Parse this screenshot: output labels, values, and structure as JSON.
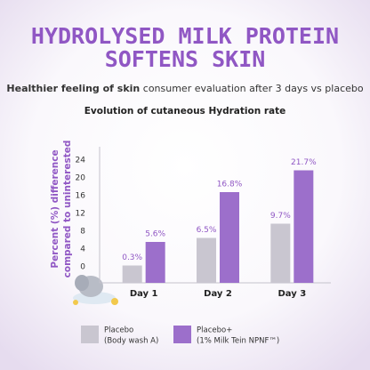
{
  "header": {
    "title_lines": [
      "HYDROLYSED MILK PROTEIN",
      "SOFTENS SKIN"
    ],
    "subtitle_bold": "Healthier feeling of skin",
    "subtitle_rest": "consumer evaluation after 3 days vs placebo"
  },
  "chart_data": {
    "type": "bar",
    "title": "Evolution of cutaneous Hydration rate",
    "y_label_lines": [
      "Percent (%) difference",
      "compared to uninterested"
    ],
    "categories": [
      "Day 1",
      "Day 2",
      "Day 3"
    ],
    "series": [
      {
        "name": "Placebo",
        "note": "(Body wash A)",
        "color": "#c9c6d0",
        "values": [
          0.3,
          6.5,
          9.7
        ],
        "value_labels": [
          "0.3%",
          "6.5%",
          "9.7%"
        ]
      },
      {
        "name": "Placebo+",
        "note": "(1% Milk Tein NPNF™)",
        "color": "#9c6fcb",
        "values": [
          5.6,
          16.8,
          21.7
        ],
        "value_labels": [
          "5.6%",
          "16.8%",
          "21.7%"
        ]
      }
    ],
    "ylim": [
      -3.6,
      27
    ],
    "yticks": [
      0,
      4,
      8,
      12,
      16,
      20,
      24
    ],
    "grid": false
  }
}
